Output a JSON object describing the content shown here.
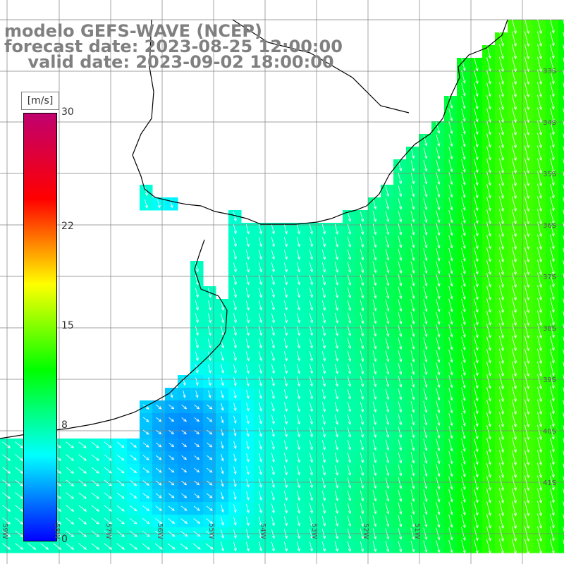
{
  "title": {
    "line1": "modelo GEFS-WAVE (NCEP)",
    "line2": "forecast date: 2023-08-25 12:00:00",
    "line3": "    valid date: 2023-09-02 18:00:00"
  },
  "colorbar": {
    "unit": "[m/s]",
    "ticks": [
      {
        "value": 30,
        "label": "30"
      },
      {
        "value": 22,
        "label": "22"
      },
      {
        "value": 15,
        "label": "15"
      },
      {
        "value": 8,
        "label": "8"
      },
      {
        "value": 0,
        "label": "0"
      }
    ],
    "range": [
      0,
      30
    ],
    "colors": [
      "#0000ff",
      "#00ffff",
      "#00ff00",
      "#ffff00",
      "#ff0000",
      "#c0006f"
    ]
  },
  "grid": {
    "lon_ticks": [
      -59,
      -58,
      -57,
      -56,
      -55,
      -54,
      -53,
      -52,
      -51,
      -50
    ],
    "lat_ticks": [
      -33,
      -34,
      -35,
      -36,
      -37,
      -38,
      -39,
      -40,
      -41
    ],
    "lat_labels": [
      "33S",
      "34S",
      "35S",
      "36S",
      "37S",
      "38S",
      "39S",
      "40S",
      "41S"
    ],
    "lon_labels": [
      "59W",
      "58W",
      "57W",
      "56W",
      "55W",
      "54W",
      "53W",
      "52W",
      "51W"
    ]
  },
  "colors": {
    "land": "#ffffff",
    "coast": "#000000",
    "grid": "#808080",
    "arrow": "#ffffff",
    "title": "#808080"
  }
}
